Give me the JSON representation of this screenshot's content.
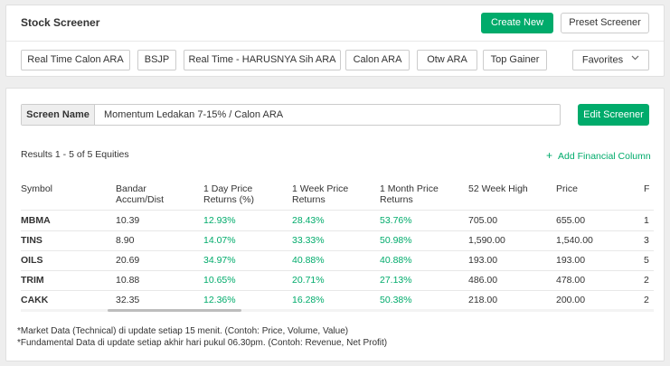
{
  "header": {
    "title": "Stock Screener",
    "create_new": "Create New",
    "preset_screener": "Preset Screener"
  },
  "presets": [
    "Real Time Calon ARA",
    "BSJP",
    "Real Time - HARUSNYA Sih ARA",
    "Calon ARA",
    "Otw ARA",
    "Top Gainer"
  ],
  "favorites_label": "Favorites",
  "screen": {
    "label": "Screen Name",
    "value": "Momentum Ledakan 7-15% / Calon ARA",
    "edit_button": "Edit Screener"
  },
  "results_text": "Results 1 - 5 of 5 Equities",
  "add_column": "Add Financial Column",
  "table": {
    "headers": [
      [
        "Symbol",
        ""
      ],
      [
        "Bandar",
        "Accum/Dist"
      ],
      [
        "1 Day Price",
        "Returns (%)"
      ],
      [
        "1 Week Price",
        "Returns"
      ],
      [
        "1 Month Price",
        "Returns"
      ],
      [
        "52 Week High",
        ""
      ],
      [
        "Price",
        ""
      ],
      [
        "F",
        ""
      ]
    ],
    "rows": [
      {
        "symbol": "MBMA",
        "bandar": "10.39",
        "day": "12.93%",
        "week": "28.43%",
        "month": "53.76%",
        "high52": "705.00",
        "price": "655.00",
        "f": "1"
      },
      {
        "symbol": "TINS",
        "bandar": "8.90",
        "day": "14.07%",
        "week": "33.33%",
        "month": "50.98%",
        "high52": "1,590.00",
        "price": "1,540.00",
        "f": "3"
      },
      {
        "symbol": "OILS",
        "bandar": "20.69",
        "day": "34.97%",
        "week": "40.88%",
        "month": "40.88%",
        "high52": "193.00",
        "price": "193.00",
        "f": "5"
      },
      {
        "symbol": "TRIM",
        "bandar": "10.88",
        "day": "10.65%",
        "week": "20.71%",
        "month": "27.13%",
        "high52": "486.00",
        "price": "478.00",
        "f": "2"
      },
      {
        "symbol": "CAKK",
        "bandar": "32.35",
        "day": "12.36%",
        "week": "16.28%",
        "month": "50.38%",
        "high52": "218.00",
        "price": "200.00",
        "f": "2"
      }
    ]
  },
  "footnotes": [
    "*Market Data (Technical) di update setiap 15 menit. (Contoh: Price, Volume, Value)",
    "*Fundamental Data di update setiap akhir hari pukul 06.30pm. (Contoh: Revenue, Net Profit)"
  ],
  "colors": {
    "accent": "#00ab6b"
  },
  "icons": {
    "favorites": "chevron-down-icon",
    "add_column": "plus-icon"
  }
}
